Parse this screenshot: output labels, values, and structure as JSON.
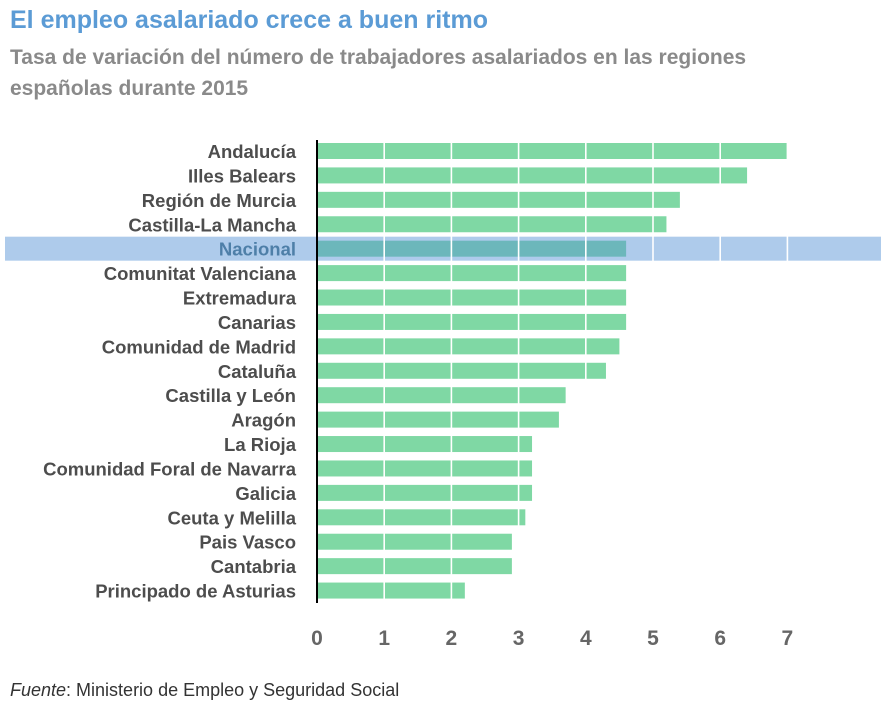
{
  "title": "El empleo asalariado crece a buen ritmo",
  "subtitle": "Tasa de variación del número de trabajadores asalariados en las regiones españolas durante 2015",
  "source": {
    "label": "Fuente",
    "text": ": Ministerio de Empleo y Seguridad Social"
  },
  "colors": {
    "bar": "#7fd8a4",
    "highlight_bar": "#6cb7bb",
    "highlight_band": "#aecbeb",
    "label": "#4d4d4d",
    "highlight_label": "#4e7fa8",
    "tick": "#666666",
    "grid": "#ffffff",
    "axis": "#000000"
  },
  "chart_data": {
    "type": "bar",
    "orientation": "horizontal",
    "categories": [
      "Andalucía",
      "Illes Balears",
      "Región de Murcia",
      "Castilla-La Mancha",
      "Nacional",
      "Comunitat Valenciana",
      "Extremadura",
      "Canarias",
      "Comunidad de Madrid",
      "Cataluña",
      "Castilla y León",
      "Aragón",
      "La Rioja",
      "Comunidad Foral de Navarra",
      "Galicia",
      "Ceuta y Melilla",
      "Pais Vasco",
      "Cantabria",
      "Principado de Asturias"
    ],
    "values": [
      7.0,
      6.4,
      5.4,
      5.2,
      4.6,
      4.6,
      4.6,
      4.6,
      4.5,
      4.3,
      3.7,
      3.6,
      3.2,
      3.2,
      3.2,
      3.1,
      2.9,
      2.9,
      2.2
    ],
    "highlight": "Nacional",
    "xlim": [
      0,
      8
    ],
    "xticks": [
      0,
      1,
      2,
      3,
      4,
      5,
      6,
      7
    ],
    "grid": "vertical lines over bars",
    "legend": "none"
  }
}
